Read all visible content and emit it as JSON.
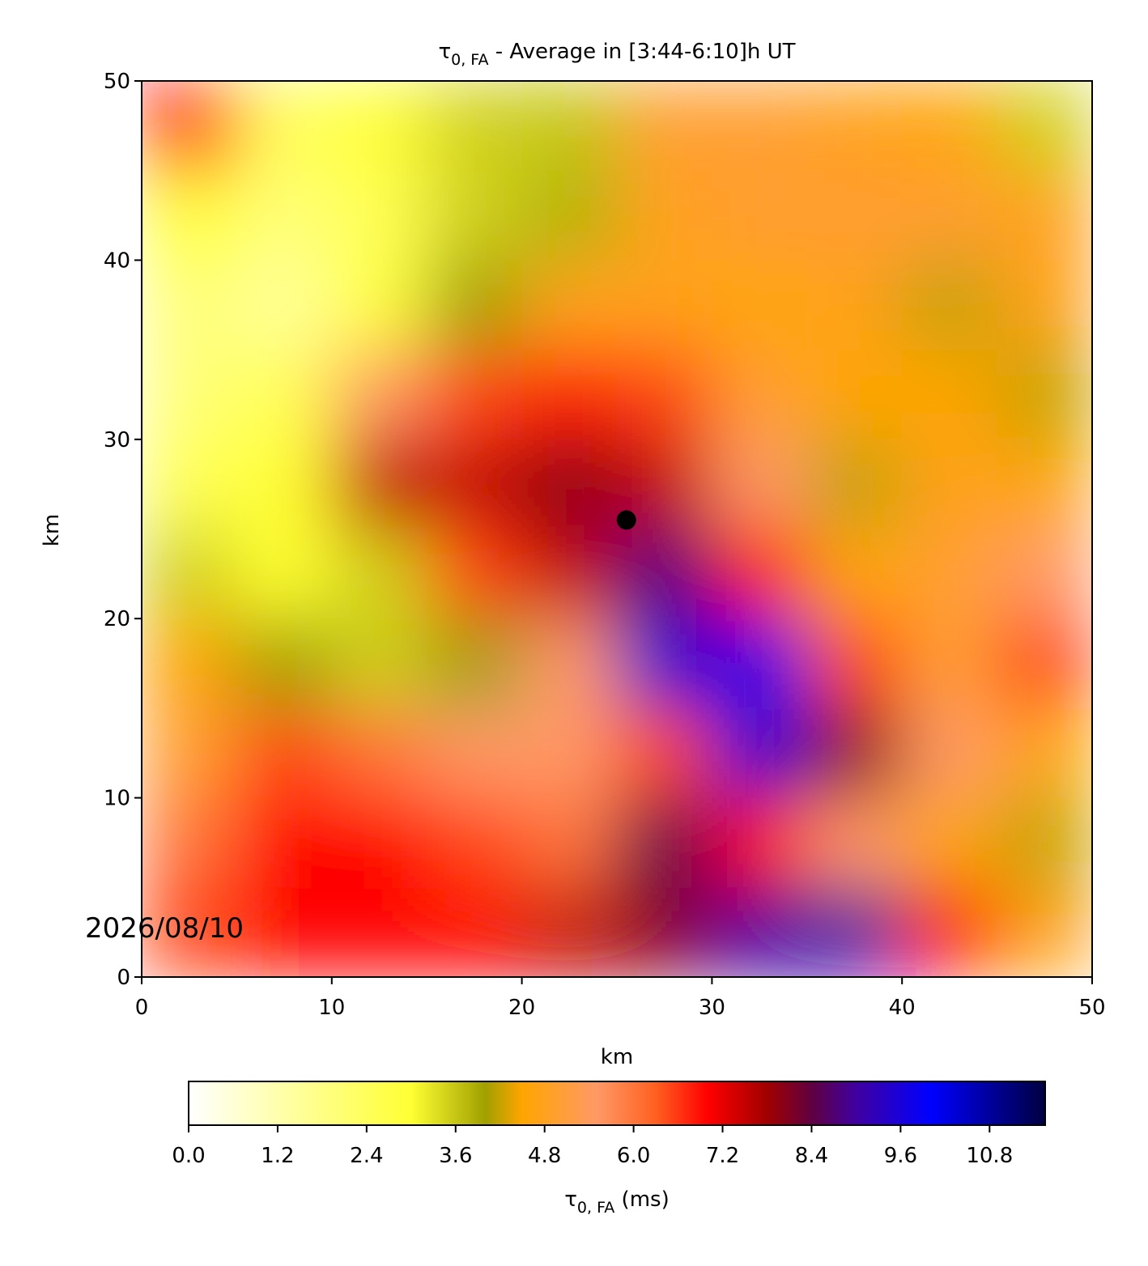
{
  "chart_data": {
    "type": "heatmap",
    "title": {
      "symbol": "τ",
      "subscript": "0, FA",
      "text": " - Average in [3:44-6:10]h UT"
    },
    "x_label": "km",
    "y_label": "km",
    "x": [
      2.5,
      7.5,
      12.5,
      17.5,
      22.5,
      27.5,
      32.5,
      37.5,
      42.5,
      47.5
    ],
    "y": [
      47.5,
      42.5,
      37.5,
      32.5,
      27.5,
      22.5,
      17.5,
      12.5,
      7.5,
      2.5
    ],
    "values": [
      [
        7,
        2.5,
        3,
        3.5,
        3.6,
        5,
        5,
        4.8,
        4.5,
        3.5
      ],
      [
        3,
        2,
        2.5,
        3.5,
        3.8,
        4.8,
        5,
        5,
        5,
        4.8
      ],
      [
        2,
        1.5,
        2.8,
        4,
        4.8,
        4.8,
        4.5,
        4.8,
        4.2,
        4.8
      ],
      [
        2,
        2.5,
        5.5,
        6.5,
        6.8,
        6.5,
        5,
        4.5,
        4.5,
        4.2
      ],
      [
        2.5,
        3,
        7.5,
        7.5,
        8,
        7.5,
        5.5,
        4.2,
        4.8,
        4.5
      ],
      [
        3.5,
        3,
        3.5,
        6.5,
        7.5,
        8.8,
        7,
        4.5,
        5,
        5.5
      ],
      [
        4.5,
        4,
        3.5,
        4,
        5.5,
        9.5,
        9.8,
        6.5,
        5,
        6.5
      ],
      [
        5,
        6.5,
        6,
        5.5,
        5.5,
        6.5,
        9.5,
        8,
        5.5,
        4.5
      ],
      [
        6,
        7,
        7,
        6.5,
        6,
        8.5,
        7,
        5.5,
        4.5,
        4.2
      ],
      [
        6.5,
        7,
        7,
        7,
        7.5,
        8,
        9,
        9,
        7,
        4.8
      ]
    ],
    "marker": {
      "x": 25.5,
      "y": 25.5,
      "color": "#000000"
    },
    "xlim": [
      0,
      50
    ],
    "ylim": [
      0,
      50
    ],
    "xticks": [
      0,
      10,
      20,
      30,
      40,
      50
    ],
    "yticks": [
      0,
      10,
      20,
      30,
      40,
      50
    ],
    "colorbar": {
      "label": {
        "symbol": "τ",
        "subscript": "0, FA",
        "text": " (ms)"
      },
      "lim": [
        0,
        11.55
      ],
      "ticks": [
        {
          "value": 0,
          "label": "0.0"
        },
        1.2,
        2.4,
        3.6,
        4.8,
        {
          "value": 6,
          "label": "6.0"
        },
        7.2,
        8.4,
        9.6,
        10.8
      ],
      "colormap": [
        {
          "value": 0,
          "color": "#ffffff"
        },
        {
          "value": 1.5,
          "color": "#ffff99"
        },
        {
          "value": 3,
          "color": "#ffff33"
        },
        {
          "value": 4,
          "color": "#a0a000"
        },
        {
          "value": 4.5,
          "color": "#ffa500"
        },
        {
          "value": 5.5,
          "color": "#ff9966"
        },
        {
          "value": 6.3,
          "color": "#ff6020"
        },
        {
          "value": 7,
          "color": "#ff0000"
        },
        {
          "value": 7.8,
          "color": "#a00000"
        },
        {
          "value": 8.4,
          "color": "#600040"
        },
        {
          "value": 9,
          "color": "#4000a0"
        },
        {
          "value": 10,
          "color": "#0000ff"
        },
        {
          "value": 11.55,
          "color": "#000040"
        }
      ]
    },
    "date": "2026/08/10"
  }
}
